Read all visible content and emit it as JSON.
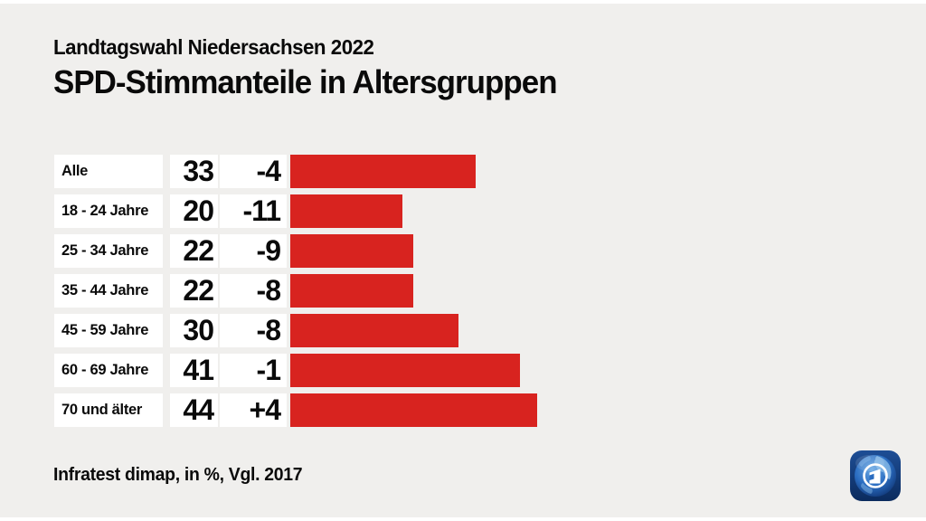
{
  "header": {
    "toptitle": "Landtagswahl Niedersachsen 2022",
    "title": "SPD-Stimmanteile in Altersgruppen"
  },
  "footer": {
    "source": "Infratest dimap, in %, Vgl. 2017"
  },
  "colors": {
    "bar_red": "#d8231f",
    "background": "#f0efed",
    "cell_white": "#ffffff",
    "text": "#0a0a0a",
    "logo_blue_dark": "#0b2b5e",
    "logo_blue_mid": "#1e5bb0",
    "logo_blue_light": "#6aa9e4"
  },
  "logo": {
    "name": "tagesschau-globe-logo"
  },
  "chart_data": {
    "type": "bar",
    "title": "SPD-Stimmanteile in Altersgruppen",
    "subtitle": "Landtagswahl Niedersachsen 2022",
    "categories": [
      "Alle",
      "18 - 24 Jahre",
      "25 - 34 Jahre",
      "35 - 44 Jahre",
      "45 - 59 Jahre",
      "60 - 69 Jahre",
      "70 und älter"
    ],
    "values": [
      33,
      20,
      22,
      22,
      30,
      41,
      44
    ],
    "changes": [
      "-4",
      "-11",
      "-9",
      "-8",
      "-8",
      "-1",
      "+4"
    ],
    "unit": "%",
    "comparison": "Vgl. 2017",
    "source": "Infratest dimap",
    "xlim": [
      0,
      50
    ],
    "orientation": "horizontal",
    "grid": false,
    "legend": false
  }
}
